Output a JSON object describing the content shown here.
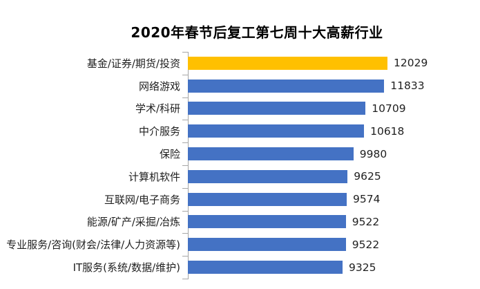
{
  "chart_data": {
    "type": "bar",
    "orientation": "horizontal",
    "title": "2020年春节后复工第七周十大高薪行业",
    "categories": [
      "基金/证券/期货/投资",
      "网络游戏",
      "学术/科研",
      "中介服务",
      "保险",
      "计算机软件",
      "互联网/电子商务",
      "能源/矿产/采掘/冶炼",
      "专业服务/咨询(财会/法律/人力资源等)",
      "IT服务(系统/数据/维护)"
    ],
    "values": [
      12029,
      11833,
      10709,
      10618,
      9980,
      9625,
      9574,
      9522,
      9522,
      9325
    ],
    "value_labels_shown": true,
    "xlabel": "",
    "ylabel": "",
    "xlim": [
      0,
      12500
    ],
    "grid": false,
    "legend": false,
    "highlight_index": 0,
    "colors": {
      "bar": "#4472C4",
      "highlight_bar": "#FFC000",
      "axis": "#A6A6A6",
      "title_text": "#000000",
      "label_text": "#1f1f1f",
      "background": "#ffffff"
    }
  }
}
